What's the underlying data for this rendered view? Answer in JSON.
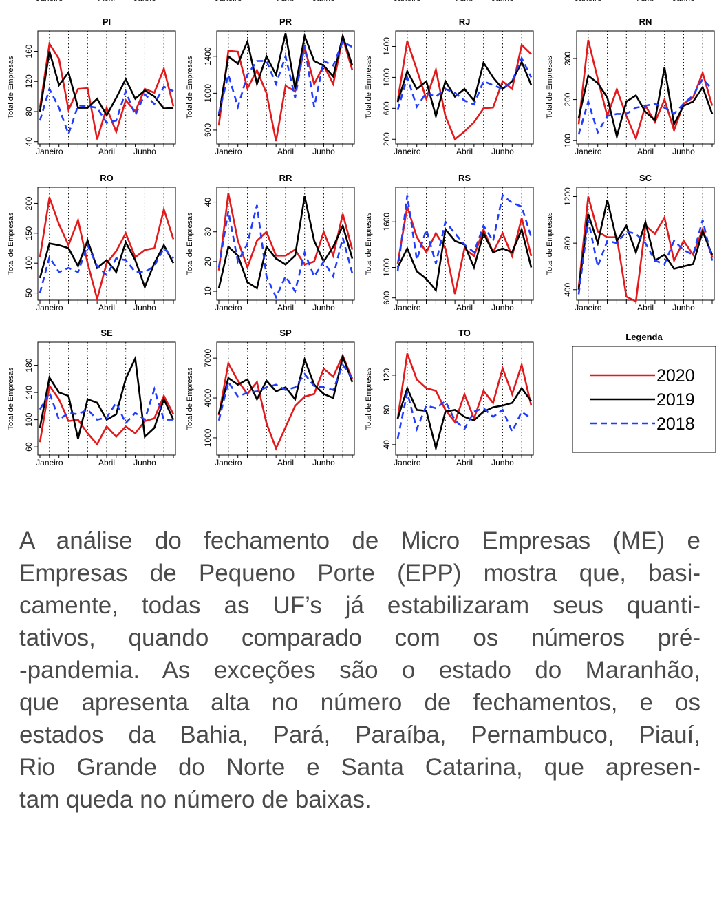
{
  "clipped_row": {
    "x_labels": [
      "Janeiro",
      "Abril",
      "Junho"
    ]
  },
  "legend_title": "Legenda",
  "chart_data": [
    {
      "type": "line",
      "title": "PI",
      "y_label": "Total de Empresas",
      "categories": [
        null,
        "Janeiro",
        null,
        null,
        null,
        null,
        null,
        "Abril",
        null,
        null,
        null,
        "Junho",
        null,
        null,
        null
      ],
      "ylim": [
        37,
        187
      ],
      "yticks": [
        40,
        80,
        120,
        160
      ],
      "series": [
        {
          "name": "2020",
          "color": "#e31a1c",
          "linestyle": "solid",
          "values": [
            85,
            170,
            150,
            82,
            110,
            111,
            43,
            85,
            53,
            95,
            80,
            110,
            105,
            137,
            87
          ]
        },
        {
          "name": "2019",
          "color": "#000000",
          "linestyle": "solid",
          "values": [
            80,
            160,
            115,
            132,
            85,
            85,
            97,
            75,
            98,
            123,
            97,
            108,
            100,
            84,
            85
          ]
        },
        {
          "name": "2018",
          "color": "#1f3cff",
          "linestyle": "dashed",
          "values": [
            68,
            110,
            85,
            50,
            88,
            87,
            85,
            65,
            68,
            107,
            75,
            103,
            90,
            113,
            107
          ]
        }
      ]
    },
    {
      "type": "line",
      "title": "PR",
      "y_label": "Total de Empresas",
      "categories": [
        null,
        "Janeiro",
        null,
        null,
        null,
        null,
        null,
        "Abril",
        null,
        null,
        null,
        "Junho",
        null,
        null,
        null
      ],
      "ylim": [
        450,
        1675
      ],
      "yticks": [
        600,
        1000,
        1400
      ],
      "series": [
        {
          "name": "2020",
          "color": "#e31a1c",
          "linestyle": "solid",
          "values": [
            650,
            1460,
            1450,
            1050,
            1250,
            1000,
            480,
            1080,
            1020,
            1500,
            1100,
            1300,
            1100,
            1600,
            1250
          ]
        },
        {
          "name": "2019",
          "color": "#000000",
          "linestyle": "solid",
          "values": [
            750,
            1400,
            1320,
            1560,
            1100,
            1400,
            1200,
            1650,
            1050,
            1620,
            1350,
            1300,
            1180,
            1620,
            1300
          ]
        },
        {
          "name": "2018",
          "color": "#1f3cff",
          "linestyle": "dashed",
          "values": [
            780,
            1200,
            850,
            1200,
            1350,
            1350,
            1100,
            1400,
            950,
            1520,
            850,
            1350,
            1300,
            1560,
            1500
          ]
        }
      ]
    },
    {
      "type": "line",
      "title": "RJ",
      "y_label": "Total de Empresas",
      "categories": [
        null,
        "Janeiro",
        null,
        null,
        null,
        null,
        null,
        "Abril",
        null,
        null,
        null,
        "Junho",
        null,
        null,
        null
      ],
      "ylim": [
        140,
        1600
      ],
      "yticks": [
        200,
        600,
        1000,
        1400
      ],
      "series": [
        {
          "name": "2020",
          "color": "#e31a1c",
          "linestyle": "solid",
          "values": [
            700,
            1470,
            1100,
            720,
            1100,
            500,
            200,
            300,
            420,
            600,
            610,
            950,
            850,
            1420,
            1300
          ]
        },
        {
          "name": "2019",
          "color": "#000000",
          "linestyle": "solid",
          "values": [
            680,
            1080,
            850,
            950,
            500,
            950,
            750,
            850,
            700,
            1190,
            1000,
            850,
            950,
            1200,
            900
          ]
        },
        {
          "name": "2018",
          "color": "#1f3cff",
          "linestyle": "dashed",
          "values": [
            580,
            1000,
            620,
            800,
            750,
            850,
            800,
            700,
            650,
            950,
            900,
            850,
            950,
            1250,
            1000
          ]
        }
      ]
    },
    {
      "type": "line",
      "title": "RN",
      "y_label": "Total de Empresas",
      "categories": [
        null,
        "Janeiro",
        null,
        null,
        null,
        null,
        null,
        "Abril",
        null,
        null,
        null,
        "Junho",
        null,
        null,
        null
      ],
      "ylim": [
        92,
        367
      ],
      "yticks": [
        100,
        200,
        300
      ],
      "series": [
        {
          "name": "2020",
          "color": "#e31a1c",
          "linestyle": "solid",
          "values": [
            140,
            345,
            250,
            160,
            225,
            160,
            105,
            185,
            145,
            200,
            125,
            190,
            205,
            265,
            185
          ]
        },
        {
          "name": "2019",
          "color": "#000000",
          "linestyle": "solid",
          "values": [
            155,
            258,
            240,
            205,
            110,
            195,
            210,
            170,
            150,
            278,
            140,
            185,
            195,
            230,
            165
          ]
        },
        {
          "name": "2018",
          "color": "#1f3cff",
          "linestyle": "dashed",
          "values": [
            115,
            195,
            120,
            160,
            165,
            165,
            180,
            185,
            190,
            180,
            165,
            190,
            210,
            250,
            225
          ]
        }
      ]
    },
    {
      "type": "line",
      "title": "RO",
      "y_label": "Total de Empresas",
      "categories": [
        null,
        "Janeiro",
        null,
        null,
        null,
        null,
        null,
        "Abril",
        null,
        null,
        null,
        "Junho",
        null,
        null,
        null
      ],
      "ylim": [
        38,
        227
      ],
      "yticks": [
        50,
        100,
        150,
        200
      ],
      "series": [
        {
          "name": "2020",
          "color": "#e31a1c",
          "linestyle": "solid",
          "values": [
            110,
            210,
            165,
            130,
            172,
            100,
            40,
            100,
            120,
            150,
            110,
            122,
            125,
            190,
            140
          ]
        },
        {
          "name": "2019",
          "color": "#000000",
          "linestyle": "solid",
          "values": [
            75,
            133,
            130,
            125,
            95,
            138,
            92,
            105,
            85,
            135,
            105,
            60,
            100,
            130,
            100
          ]
        },
        {
          "name": "2018",
          "color": "#1f3cff",
          "linestyle": "dashed",
          "values": [
            50,
            110,
            85,
            92,
            85,
            130,
            95,
            80,
            108,
            105,
            85,
            85,
            95,
            125,
            108
          ]
        }
      ]
    },
    {
      "type": "line",
      "title": "RR",
      "y_label": "Total de Empresas",
      "categories": [
        null,
        "Janeiro",
        null,
        null,
        null,
        null,
        null,
        "Abril",
        null,
        null,
        null,
        "Junho",
        null,
        null,
        null
      ],
      "ylim": [
        7,
        45
      ],
      "yticks": [
        10,
        20,
        30,
        40
      ],
      "series": [
        {
          "name": "2020",
          "color": "#e31a1c",
          "linestyle": "solid",
          "values": [
            17,
            43,
            27,
            18,
            27,
            30,
            22,
            22,
            24,
            19,
            20,
            30,
            22,
            36,
            24
          ]
        },
        {
          "name": "2019",
          "color": "#000000",
          "linestyle": "solid",
          "values": [
            11,
            25,
            22,
            13,
            11,
            25,
            21,
            19,
            22,
            42,
            27,
            20,
            25,
            32,
            21
          ]
        },
        {
          "name": "2018",
          "color": "#1f3cff",
          "linestyle": "dashed",
          "values": [
            18,
            37,
            20,
            26,
            39,
            15,
            8,
            15,
            10,
            23,
            15,
            20,
            15,
            28,
            16
          ]
        }
      ]
    },
    {
      "type": "line",
      "title": "RS",
      "y_label": "Total de Empresas",
      "categories": [
        null,
        "Janeiro",
        null,
        null,
        null,
        null,
        null,
        "Abril",
        null,
        null,
        null,
        "Junho",
        null,
        null,
        null
      ],
      "ylim": [
        570,
        2055
      ],
      "yticks": [
        600,
        1000,
        1600
      ],
      "series": [
        {
          "name": "2020",
          "color": "#e31a1c",
          "linestyle": "solid",
          "values": [
            1050,
            1800,
            1400,
            1200,
            1450,
            1250,
            650,
            1250,
            1150,
            1500,
            1200,
            1450,
            1150,
            1650,
            1150
          ]
        },
        {
          "name": "2019",
          "color": "#000000",
          "linestyle": "solid",
          "values": [
            1000,
            1250,
            950,
            850,
            700,
            1500,
            1350,
            1300,
            1000,
            1450,
            1200,
            1250,
            1200,
            1500,
            1000
          ]
        },
        {
          "name": "2018",
          "color": "#1f3cff",
          "linestyle": "dashed",
          "values": [
            950,
            1950,
            1100,
            1500,
            1050,
            1600,
            1450,
            1300,
            1200,
            1550,
            1350,
            1950,
            1850,
            1800,
            1400
          ]
        }
      ]
    },
    {
      "type": "line",
      "title": "SC",
      "y_label": "Total de Empresas",
      "categories": [
        null,
        "Janeiro",
        null,
        null,
        null,
        null,
        null,
        "Abril",
        null,
        null,
        null,
        "Junho",
        null,
        null,
        null
      ],
      "ylim": [
        310,
        1280
      ],
      "yticks": [
        400,
        800,
        1200
      ],
      "series": [
        {
          "name": "2020",
          "color": "#e31a1c",
          "linestyle": "solid",
          "values": [
            420,
            1200,
            900,
            850,
            850,
            340,
            300,
            950,
            880,
            1020,
            650,
            820,
            700,
            920,
            680
          ]
        },
        {
          "name": "2019",
          "color": "#000000",
          "linestyle": "solid",
          "values": [
            400,
            1050,
            800,
            1170,
            820,
            950,
            720,
            980,
            650,
            700,
            580,
            600,
            620,
            900,
            700
          ]
        },
        {
          "name": "2018",
          "color": "#1f3cff",
          "linestyle": "dashed",
          "values": [
            360,
            1000,
            600,
            820,
            800,
            900,
            880,
            800,
            650,
            620,
            820,
            740,
            700,
            1000,
            650
          ]
        }
      ]
    },
    {
      "type": "line",
      "title": "SE",
      "y_label": "Total de Empresas",
      "categories": [
        null,
        "Janeiro",
        null,
        null,
        null,
        null,
        null,
        "Abril",
        null,
        null,
        null,
        "Junho",
        null,
        null,
        null
      ],
      "ylim": [
        48,
        214
      ],
      "yticks": [
        60,
        100,
        140,
        180
      ],
      "series": [
        {
          "name": "2020",
          "color": "#e31a1c",
          "linestyle": "solid",
          "values": [
            67,
            150,
            130,
            98,
            100,
            80,
            64,
            90,
            75,
            90,
            80,
            98,
            102,
            135,
            108
          ]
        },
        {
          "name": "2019",
          "color": "#000000",
          "linestyle": "solid",
          "values": [
            88,
            162,
            140,
            135,
            72,
            130,
            125,
            100,
            108,
            160,
            190,
            75,
            88,
            130,
            100
          ]
        },
        {
          "name": "2018",
          "color": "#1f3cff",
          "linestyle": "dashed",
          "values": [
            115,
            140,
            100,
            110,
            108,
            115,
            100,
            103,
            125,
            95,
            110,
            100,
            145,
            100,
            100
          ]
        }
      ]
    },
    {
      "type": "line",
      "title": "SP",
      "y_label": "Total de Empresas",
      "categories": [
        null,
        "Janeiro",
        null,
        null,
        null,
        null,
        null,
        "Abril",
        null,
        null,
        null,
        "Junho",
        null,
        null,
        null
      ],
      "ylim": [
        -300,
        8200
      ],
      "yticks": [
        1000,
        4000,
        7000
      ],
      "series": [
        {
          "name": "2020",
          "color": "#e31a1c",
          "linestyle": "solid",
          "values": [
            2700,
            6600,
            5300,
            4300,
            5200,
            2100,
            200,
            1800,
            3400,
            4100,
            4300,
            6200,
            5600,
            7200,
            5400
          ]
        },
        {
          "name": "2019",
          "color": "#000000",
          "linestyle": "solid",
          "values": [
            2800,
            5500,
            5000,
            5400,
            3900,
            5300,
            4500,
            4800,
            3900,
            6900,
            5000,
            4300,
            4000,
            7100,
            5200
          ]
        },
        {
          "name": "2018",
          "color": "#1f3cff",
          "linestyle": "dashed",
          "values": [
            2300,
            5200,
            4100,
            4400,
            4500,
            4800,
            5000,
            4600,
            4800,
            5800,
            4900,
            4800,
            4600,
            6500,
            5500
          ]
        }
      ]
    },
    {
      "type": "line",
      "title": "TO",
      "y_label": "Total de Empresas",
      "categories": [
        null,
        "Janeiro",
        null,
        null,
        null,
        null,
        null,
        "Abril",
        null,
        null,
        null,
        "Junho",
        null,
        null,
        null
      ],
      "ylim": [
        28,
        158
      ],
      "yticks": [
        40,
        80,
        120
      ],
      "series": [
        {
          "name": "2020",
          "color": "#e31a1c",
          "linestyle": "solid",
          "values": [
            70,
            145,
            115,
            105,
            102,
            80,
            66,
            98,
            70,
            102,
            88,
            128,
            98,
            132,
            85
          ]
        },
        {
          "name": "2019",
          "color": "#000000",
          "linestyle": "solid",
          "values": [
            70,
            105,
            80,
            79,
            36,
            78,
            80,
            72,
            68,
            78,
            83,
            85,
            88,
            105,
            90
          ]
        },
        {
          "name": "2018",
          "color": "#1f3cff",
          "linestyle": "dashed",
          "values": [
            47,
            100,
            58,
            85,
            82,
            90,
            68,
            58,
            78,
            82,
            72,
            80,
            55,
            78,
            70
          ]
        }
      ]
    }
  ],
  "paragraph": {
    "lines": [
      "A análise do fechamento de Micro Empresas (ME) e",
      "Empresas de Pequeno Porte (EPP) mostra que, basi-",
      "camente, todas as UF’s já estabilizaram seus quanti-",
      "tativos, quando comparado com os números pré-",
      "-pandemia. As exceções são o estado do Maranhão,",
      "que apresenta alta no número de fechamentos, e os",
      "estados da Bahia, Pará, Paraíba, Pernambuco, Piauí,",
      "Rio Grande do Norte e Santa Catarina, que apresen-",
      "tam queda no número de baixas."
    ]
  }
}
